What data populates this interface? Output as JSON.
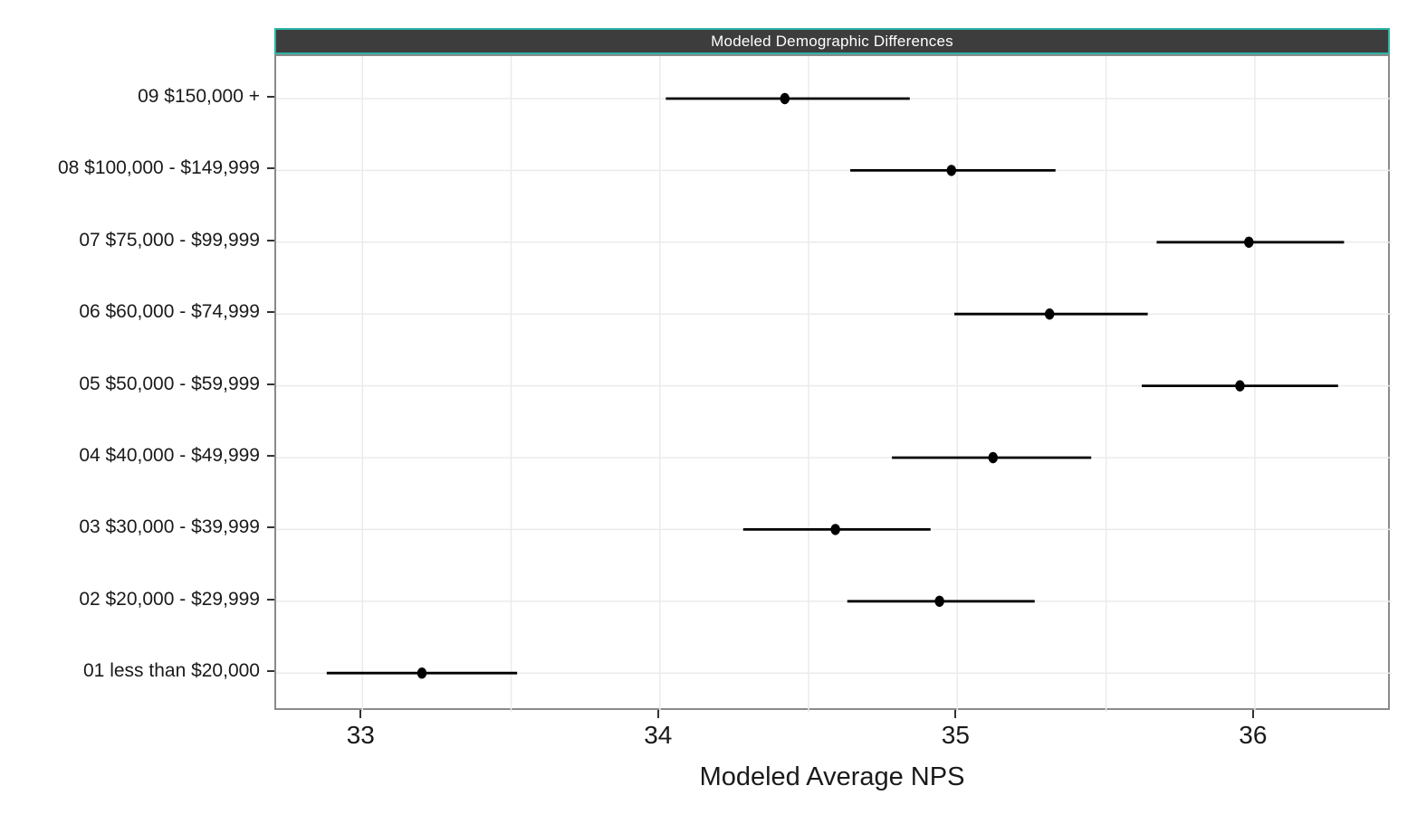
{
  "chart_data": {
    "type": "scatter",
    "variant": "pointrange",
    "title": "Modeled Demographic Differences",
    "xlabel": "Modeled Average NPS",
    "ylabel": "",
    "xlim": [
      32.71,
      36.46
    ],
    "x_ticks": [
      33,
      34,
      35,
      36
    ],
    "x_tick_labels": [
      "33",
      "34",
      "35",
      "36"
    ],
    "x_minor_ticks": [
      33.5,
      34.5,
      35.5
    ],
    "grid": true,
    "legend": false,
    "rows": [
      {
        "label": "09 $150,000 +",
        "estimate": 34.42,
        "lower": 34.02,
        "upper": 34.84
      },
      {
        "label": "08 $100,000 - $149,999",
        "estimate": 34.98,
        "lower": 34.64,
        "upper": 35.33
      },
      {
        "label": "07 $75,000 - $99,999",
        "estimate": 35.98,
        "lower": 35.67,
        "upper": 36.3
      },
      {
        "label": "06 $60,000 - $74,999",
        "estimate": 35.31,
        "lower": 34.99,
        "upper": 35.64
      },
      {
        "label": "05 $50,000 - $59,999",
        "estimate": 35.95,
        "lower": 35.62,
        "upper": 36.28
      },
      {
        "label": "04 $40,000 - $49,999",
        "estimate": 35.12,
        "lower": 34.78,
        "upper": 35.45
      },
      {
        "label": "03 $30,000 - $39,999",
        "estimate": 34.59,
        "lower": 34.28,
        "upper": 34.91
      },
      {
        "label": "02 $20,000 - $29,999",
        "estimate": 34.94,
        "lower": 34.63,
        "upper": 35.26
      },
      {
        "label": "01 less than $20,000",
        "estimate": 33.2,
        "lower": 32.88,
        "upper": 33.52
      }
    ],
    "colors": {
      "strip_bg": "#3d3d3d",
      "strip_border": "#2cb3a6",
      "strip_text": "#ffffff",
      "panel_border": "#8a8a8a",
      "gridline": "#ebebeb",
      "data": "#000000",
      "text": "#1a1a1a",
      "tick": "#333333"
    }
  }
}
